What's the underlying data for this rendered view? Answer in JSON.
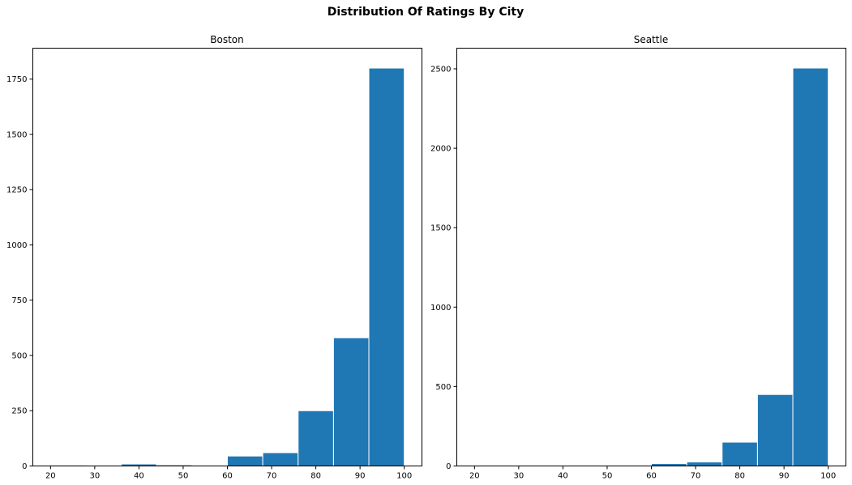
{
  "suptitle": "Distribution Of Ratings By City",
  "colors": {
    "bar": "#1f77b4",
    "bar_edge": "#ffffff",
    "axis": "#000000"
  },
  "chart_data": [
    {
      "type": "bar",
      "title": "Boston",
      "xlabel": "",
      "ylabel": "",
      "xlim": [
        16,
        104
      ],
      "ylim": [
        0,
        1890
      ],
      "xticks": [
        20,
        30,
        40,
        50,
        60,
        70,
        80,
        90,
        100
      ],
      "yticks": [
        0,
        250,
        500,
        750,
        1000,
        1250,
        1500,
        1750
      ],
      "bin_edges": [
        20,
        28,
        36,
        44,
        52,
        60,
        68,
        76,
        84,
        92,
        100
      ],
      "values": [
        4,
        0,
        9,
        5,
        0,
        45,
        60,
        250,
        580,
        1800
      ]
    },
    {
      "type": "bar",
      "title": "Seattle",
      "xlabel": "",
      "ylabel": "",
      "xlim": [
        16,
        104
      ],
      "ylim": [
        0,
        2630
      ],
      "xticks": [
        20,
        30,
        40,
        50,
        60,
        70,
        80,
        90,
        100
      ],
      "yticks": [
        0,
        500,
        1000,
        1500,
        2000,
        2500
      ],
      "bin_edges": [
        20,
        28,
        36,
        44,
        52,
        60,
        68,
        76,
        84,
        92,
        100
      ],
      "values": [
        1,
        1,
        1,
        1,
        1,
        15,
        25,
        150,
        450,
        2505
      ]
    }
  ]
}
